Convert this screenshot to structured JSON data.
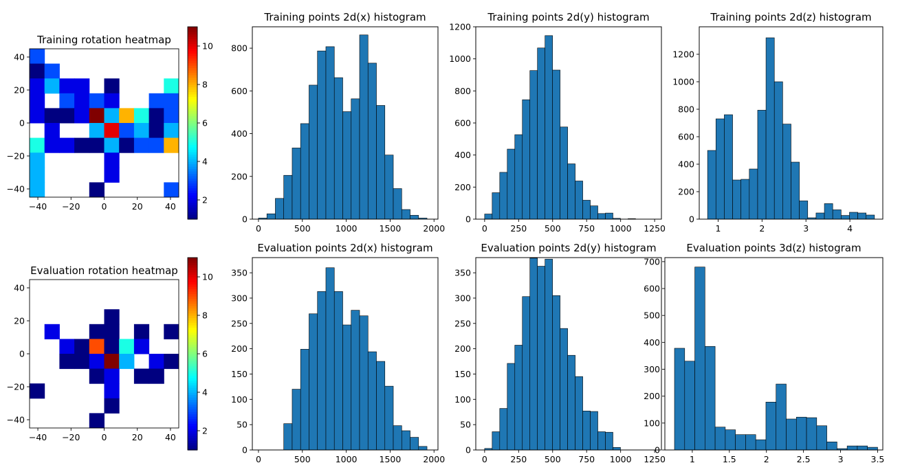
{
  "chart_data": [
    {
      "type": "heatmap",
      "title": "Training rotation heatmap",
      "xlim": [
        -45,
        45
      ],
      "ylim": [
        -45,
        45
      ],
      "xticks": [
        -40,
        -20,
        0,
        20,
        40
      ],
      "yticks": [
        -40,
        -20,
        0,
        20,
        40
      ],
      "colormap": "jet",
      "vmin": 1,
      "vmax": 11,
      "colorbar_ticks": [
        2,
        4,
        6,
        8,
        10
      ],
      "bin_size": 9,
      "origin": -45,
      "cells": [
        [
          0,
          9,
          3
        ],
        [
          0,
          8,
          1
        ],
        [
          1,
          8,
          3
        ],
        [
          0,
          7,
          2
        ],
        [
          1,
          7,
          4
        ],
        [
          2,
          7,
          2
        ],
        [
          3,
          7,
          2
        ],
        [
          5,
          7,
          1
        ],
        [
          9,
          7,
          5
        ],
        [
          0,
          6,
          2
        ],
        [
          2,
          6,
          3
        ],
        [
          3,
          6,
          2
        ],
        [
          4,
          6,
          3
        ],
        [
          5,
          6,
          2
        ],
        [
          8,
          6,
          3
        ],
        [
          9,
          6,
          3
        ],
        [
          0,
          5,
          2
        ],
        [
          1,
          5,
          1
        ],
        [
          2,
          5,
          1
        ],
        [
          3,
          5,
          2
        ],
        [
          4,
          5,
          11
        ],
        [
          5,
          5,
          4
        ],
        [
          6,
          5,
          8
        ],
        [
          7,
          5,
          5
        ],
        [
          8,
          5,
          1
        ],
        [
          9,
          5,
          3
        ],
        [
          1,
          4,
          2
        ],
        [
          4,
          4,
          4
        ],
        [
          5,
          4,
          10
        ],
        [
          6,
          4,
          3
        ],
        [
          7,
          4,
          4
        ],
        [
          8,
          4,
          1
        ],
        [
          9,
          4,
          4
        ],
        [
          0,
          3,
          5
        ],
        [
          1,
          3,
          2
        ],
        [
          2,
          3,
          2
        ],
        [
          3,
          3,
          1
        ],
        [
          4,
          3,
          1
        ],
        [
          5,
          3,
          4
        ],
        [
          6,
          3,
          1
        ],
        [
          7,
          3,
          3
        ],
        [
          8,
          3,
          3
        ],
        [
          9,
          3,
          8
        ],
        [
          0,
          2,
          4
        ],
        [
          5,
          2,
          2
        ],
        [
          0,
          1,
          4
        ],
        [
          5,
          1,
          2
        ],
        [
          0,
          0,
          4
        ],
        [
          4,
          0,
          1
        ],
        [
          9,
          0,
          3
        ]
      ]
    },
    {
      "type": "bar",
      "title": "Training points 2d(x) histogram",
      "xlim": [
        -70,
        2045
      ],
      "ylim": [
        0,
        900
      ],
      "xticks": [
        0,
        500,
        1000,
        1500,
        2000
      ],
      "yticks": [
        0,
        200,
        400,
        600,
        800
      ],
      "bin_start": 0,
      "bin_width": 96,
      "values": [
        5,
        25,
        97,
        205,
        333,
        447,
        627,
        787,
        807,
        662,
        503,
        563,
        862,
        730,
        532,
        300,
        143,
        45,
        18,
        5
      ]
    },
    {
      "type": "bar",
      "title": "Training points 2d(y) histogram",
      "xlim": [
        -65,
        1300
      ],
      "ylim": [
        0,
        1200
      ],
      "xticks": [
        0,
        250,
        500,
        750,
        1000,
        1250
      ],
      "yticks": [
        0,
        200,
        400,
        600,
        800,
        1000,
        1200
      ],
      "bin_start": 0,
      "bin_width": 55.5,
      "values": [
        32,
        165,
        292,
        437,
        527,
        745,
        927,
        1068,
        1145,
        930,
        575,
        345,
        238,
        118,
        83,
        35,
        38,
        5,
        0,
        3
      ]
    },
    {
      "type": "bar",
      "title": "Training points 2d(z) histogram",
      "xlim": [
        0.57,
        4.75
      ],
      "ylim": [
        0,
        1400
      ],
      "xticks": [
        1,
        2,
        3,
        4
      ],
      "yticks": [
        0,
        200,
        400,
        600,
        800,
        1000,
        1200
      ],
      "bin_start": 0.76,
      "bin_width": 0.19,
      "values": [
        500,
        730,
        760,
        285,
        290,
        365,
        793,
        1320,
        1000,
        692,
        415,
        133,
        10,
        45,
        113,
        68,
        27,
        50,
        45,
        30
      ]
    },
    {
      "type": "heatmap",
      "title": "Evaluation rotation heatmap",
      "xlim": [
        -45,
        45
      ],
      "ylim": [
        -45,
        45
      ],
      "xticks": [
        -40,
        -20,
        0,
        20,
        40
      ],
      "yticks": [
        -40,
        -20,
        0,
        20,
        40
      ],
      "colormap": "jet",
      "vmin": 1,
      "vmax": 11,
      "colorbar_ticks": [
        2,
        4,
        6,
        8,
        10
      ],
      "bin_size": 9,
      "origin": -45,
      "cells": [
        [
          5,
          7,
          1
        ],
        [
          1,
          6,
          2
        ],
        [
          4,
          6,
          1
        ],
        [
          5,
          6,
          1
        ],
        [
          7,
          6,
          1
        ],
        [
          9,
          6,
          1
        ],
        [
          2,
          5,
          2
        ],
        [
          3,
          5,
          1
        ],
        [
          4,
          5,
          9
        ],
        [
          5,
          5,
          1
        ],
        [
          6,
          5,
          5
        ],
        [
          7,
          5,
          2
        ],
        [
          2,
          4,
          1
        ],
        [
          3,
          4,
          1
        ],
        [
          4,
          4,
          2
        ],
        [
          5,
          4,
          11
        ],
        [
          6,
          4,
          4
        ],
        [
          8,
          4,
          2
        ],
        [
          9,
          4,
          1
        ],
        [
          4,
          3,
          1
        ],
        [
          5,
          3,
          2
        ],
        [
          7,
          3,
          1
        ],
        [
          8,
          3,
          1
        ],
        [
          0,
          2,
          1
        ],
        [
          5,
          2,
          2
        ],
        [
          5,
          1,
          1
        ],
        [
          4,
          0,
          1
        ]
      ]
    },
    {
      "type": "bar",
      "title": "Evaluation points 2d(x) histogram",
      "xlim": [
        -70,
        2045
      ],
      "ylim": [
        0,
        380
      ],
      "xticks": [
        0,
        500,
        1000,
        1500,
        2000
      ],
      "yticks": [
        0,
        50,
        100,
        150,
        200,
        250,
        300,
        350
      ],
      "bin_start": 0,
      "bin_width": 96,
      "values": [
        0,
        0,
        0,
        52,
        120,
        199,
        269,
        313,
        360,
        313,
        247,
        276,
        265,
        194,
        175,
        126,
        48,
        38,
        25,
        7
      ]
    },
    {
      "type": "bar",
      "title": "Evaluation points 2d(y) histogram",
      "xlim": [
        -65,
        1300
      ],
      "ylim": [
        0,
        380
      ],
      "xticks": [
        0,
        250,
        500,
        750,
        1000,
        1250
      ],
      "yticks": [
        0,
        50,
        100,
        150,
        200,
        250,
        300,
        350
      ],
      "bin_start": 0,
      "bin_width": 55.5,
      "values": [
        3,
        36,
        82,
        171,
        207,
        303,
        379,
        363,
        377,
        305,
        240,
        187,
        145,
        77,
        76,
        36,
        35,
        5,
        0,
        0
      ]
    },
    {
      "type": "bar",
      "title": "Evaluation points 3d(z) histogram",
      "xlim": [
        0.63,
        3.57
      ],
      "ylim": [
        0,
        715
      ],
      "xticks": [
        1.0,
        1.5,
        2.0,
        2.5,
        3.0,
        3.5
      ],
      "yticks": [
        0,
        100,
        200,
        300,
        400,
        500,
        600,
        700
      ],
      "bin_start": 0.76,
      "bin_width": 0.137,
      "values": [
        378,
        330,
        680,
        385,
        85,
        75,
        57,
        57,
        38,
        178,
        245,
        115,
        122,
        120,
        90,
        30,
        5,
        15,
        15,
        10
      ]
    }
  ],
  "colors": {
    "bar_fill": "#1f77b4",
    "bar_edge": "#000000"
  }
}
